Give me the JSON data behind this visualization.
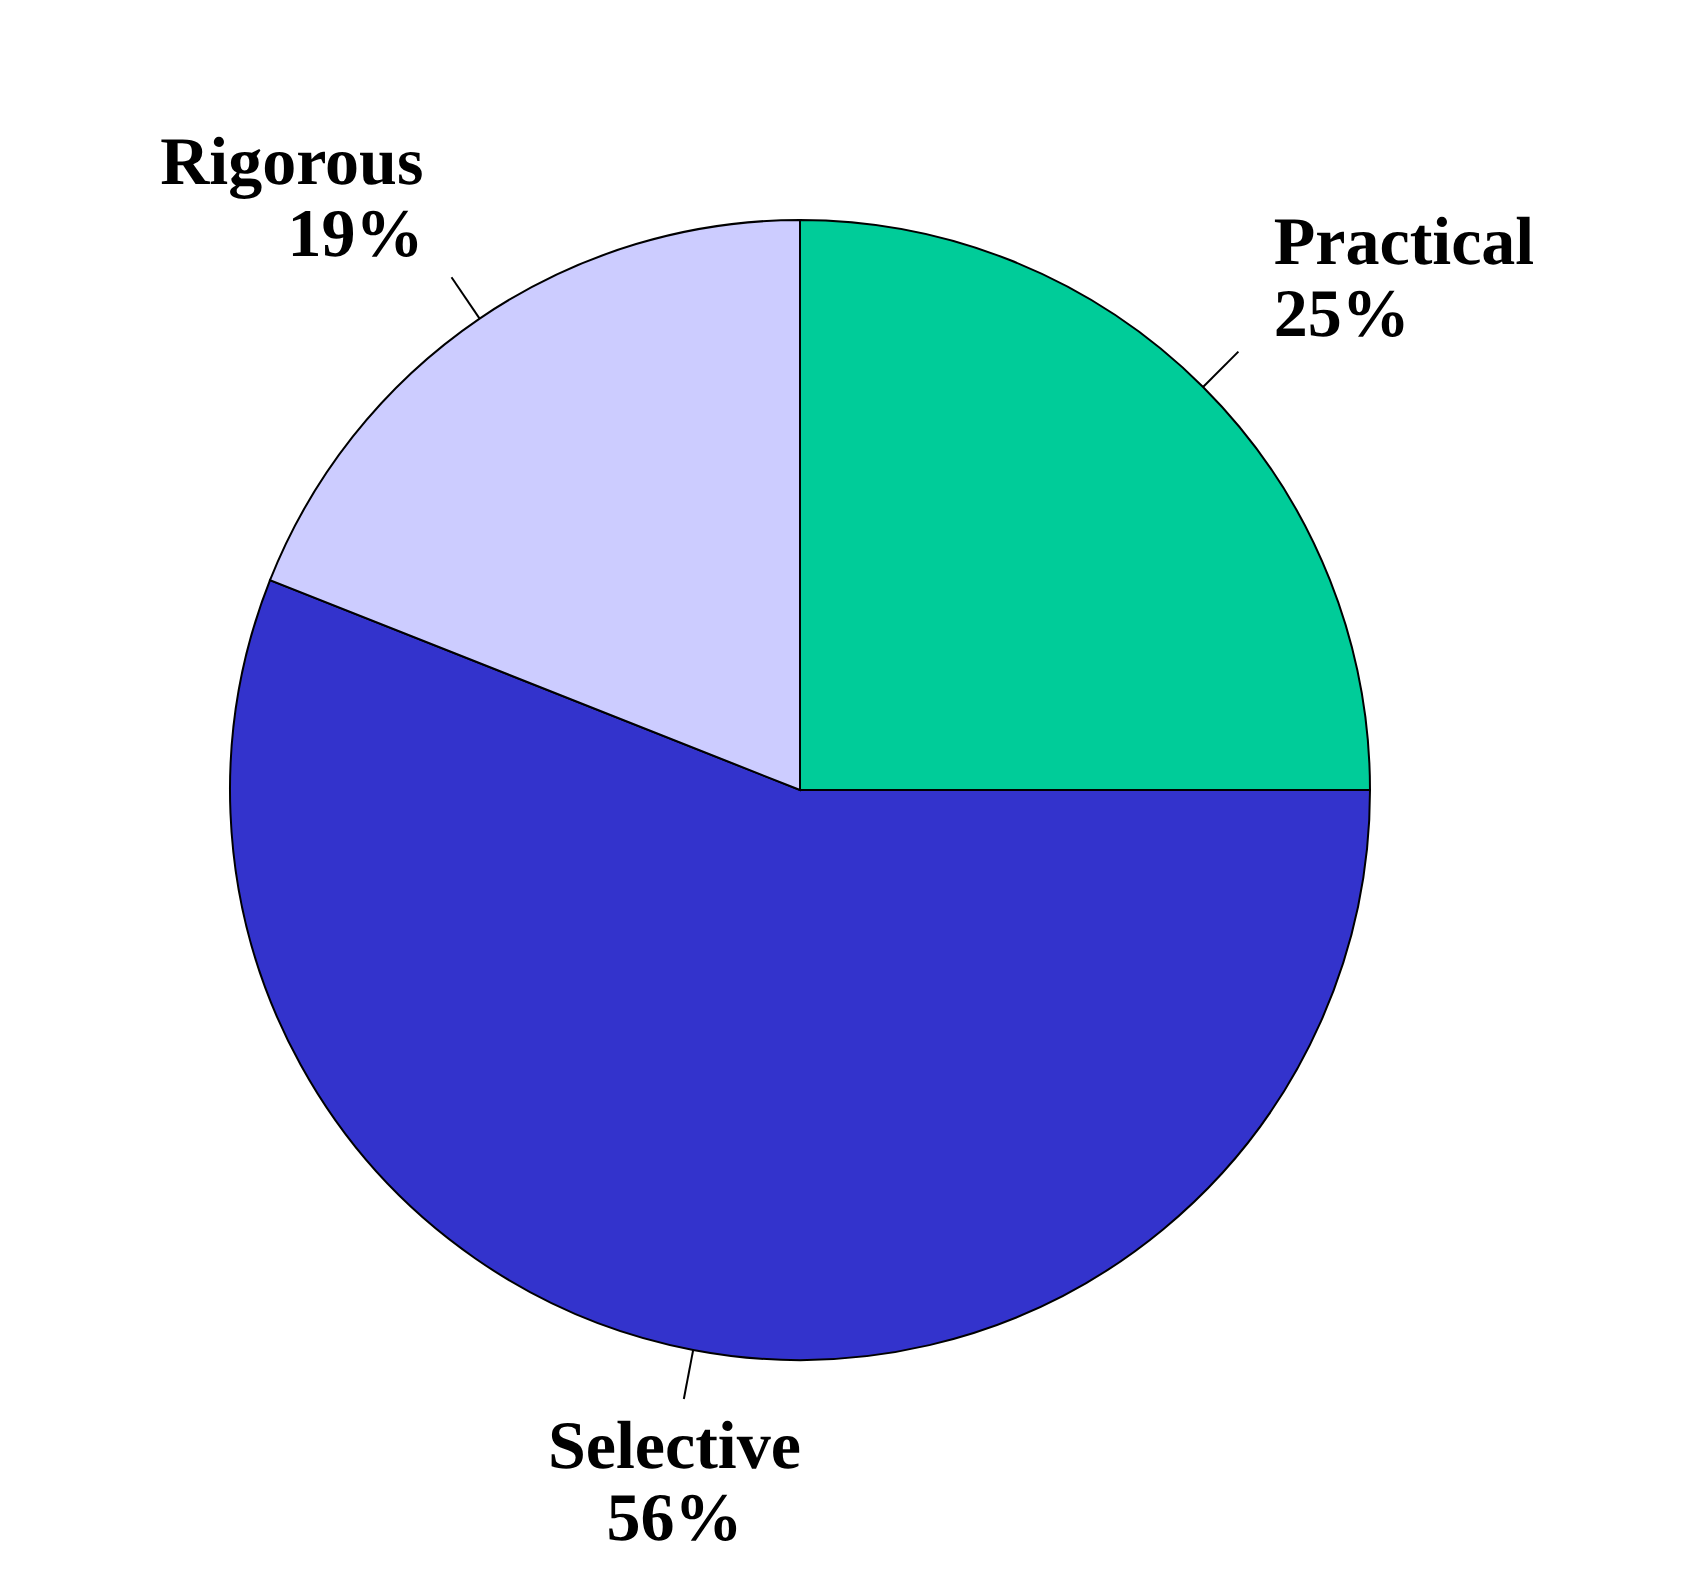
{
  "chart_data": {
    "type": "pie",
    "categories": [
      "Practical",
      "Selective",
      "Rigorous"
    ],
    "values": [
      25,
      56,
      19
    ],
    "colors": [
      "#00cc99",
      "#3333cc",
      "#ccccff"
    ],
    "value_labels": [
      "25%",
      "56%",
      "19%"
    ]
  }
}
